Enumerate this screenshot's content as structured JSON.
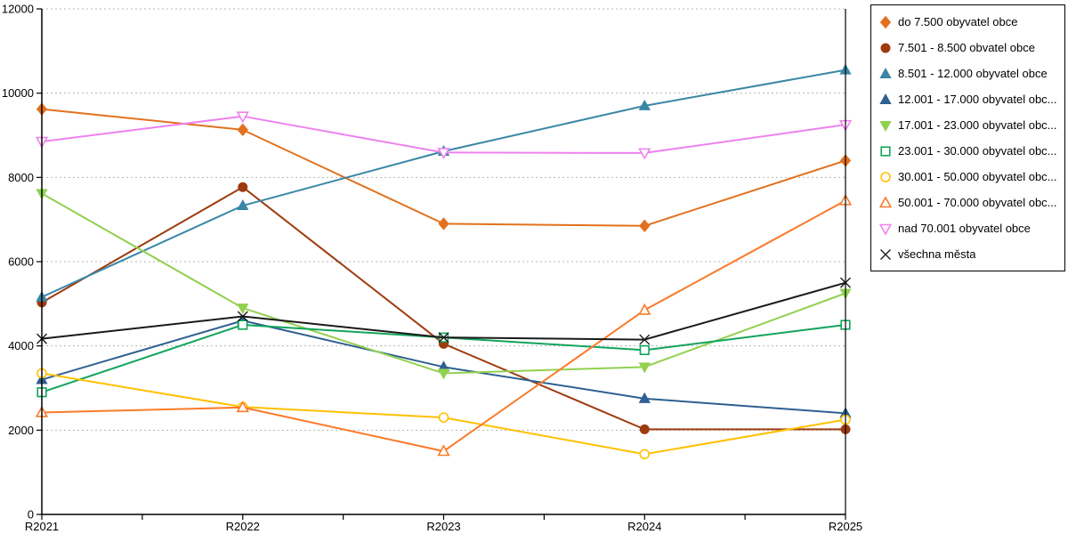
{
  "chart_data": {
    "type": "line",
    "title": "",
    "xlabel": "",
    "ylabel": "",
    "categories": [
      "R2021",
      "R2022",
      "R2023",
      "R2024",
      "R2025"
    ],
    "ylim": [
      0,
      12000
    ],
    "yticks": [
      0,
      2000,
      4000,
      6000,
      8000,
      10000,
      12000
    ],
    "grid": "horizontal-dashed",
    "legend_position": "top-right-outside",
    "series": [
      {
        "name": "do 7.500 obyvatel obce",
        "marker": "diamond",
        "filled": true,
        "color": "#e2711d",
        "values": [
          9620,
          9130,
          6900,
          6850,
          8400
        ]
      },
      {
        "name": "7.501 - 8.500 obvatel obce",
        "marker": "circle",
        "filled": true,
        "color": "#9e3b0e",
        "values": [
          5030,
          7770,
          4050,
          2020,
          2020
        ]
      },
      {
        "name": "8.501 - 12.000 obyvatel obce",
        "marker": "triangle-up",
        "filled": true,
        "color": "#3a87a5",
        "values": [
          5160,
          7330,
          8620,
          9700,
          10550
        ]
      },
      {
        "name": "12.001 - 17.000 obyvatel obc...",
        "marker": "triangle-up",
        "filled": true,
        "color": "#2e6091",
        "values": [
          3200,
          4600,
          3500,
          2750,
          2400
        ]
      },
      {
        "name": "17.001 - 23.000 obyvatel obc...",
        "marker": "triangle-down",
        "filled": true,
        "color": "#92d050",
        "values": [
          7620,
          4900,
          3350,
          3500,
          5250
        ]
      },
      {
        "name": "23.001 - 30.000 obyvatel obc...",
        "marker": "square",
        "filled": false,
        "color": "#12a45c",
        "values": [
          2900,
          4500,
          4200,
          3900,
          4500
        ]
      },
      {
        "name": "30.001 - 50.000 obyvatel obc...",
        "marker": "circle",
        "filled": false,
        "color": "#ffc000",
        "values": [
          3350,
          2550,
          2300,
          1430,
          2250
        ]
      },
      {
        "name": "50.001 - 70.000 obyvatel obc...",
        "marker": "triangle-up",
        "filled": false,
        "color": "#fb7a28",
        "values": [
          2420,
          2540,
          1500,
          4850,
          7450
        ]
      },
      {
        "name": "nad 70.001 obyvatel obce",
        "marker": "triangle-down",
        "filled": false,
        "color": "#ee82ee",
        "values": [
          8850,
          9450,
          8590,
          8580,
          9250
        ]
      },
      {
        "name": "všechna města",
        "marker": "x",
        "filled": false,
        "color": "#1a1a1a",
        "values": [
          4170,
          4700,
          4200,
          4150,
          5500
        ]
      }
    ]
  }
}
